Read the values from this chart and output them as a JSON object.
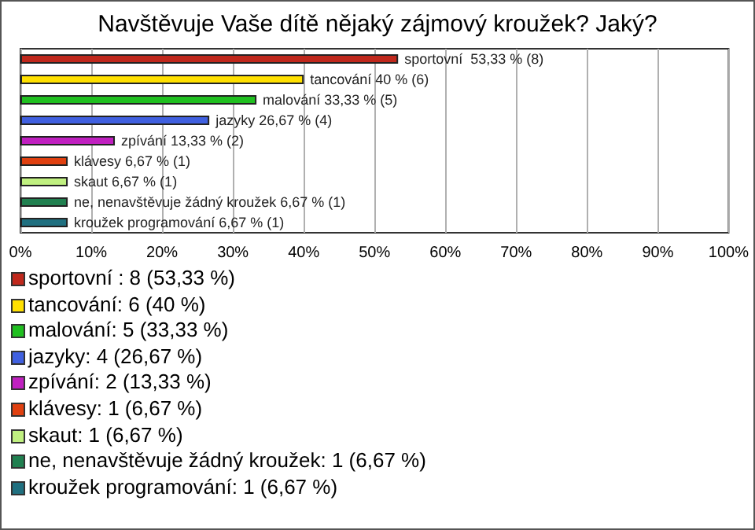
{
  "chart_data": {
    "type": "bar",
    "orientation": "horizontal",
    "title": "Navštěvuje Vaše dítě nějaký zájmový kroužek? Jaký?",
    "categories": [
      null,
      null,
      null,
      null,
      null,
      null,
      null,
      null,
      null
    ],
    "values": [
      53.33,
      40,
      33.33,
      26.67,
      13.33,
      6.67,
      6.67,
      6.67,
      6.67
    ],
    "colors": [
      "#c0281c",
      "#ffe000",
      "#20c020",
      "#4060e0",
      "#c020c0",
      "#e04010",
      "#c0f080",
      "#208050",
      "#207080"
    ],
    "value_labels": [
      "sportovní  53,33 % (8)",
      "tancování 40 % (6)",
      "malování 33,33 % (5)",
      "jazyky 26,67 % (4)",
      "zpívání 13,33 % (2)",
      "klávesy 6,67 % (1)",
      "skaut 6,67 % (1)",
      "ne, nenavštěvuje žádný kroužek 6,67 % (1)",
      "kroužek programování 6,67 % (1)"
    ],
    "xlim": [
      0,
      100
    ],
    "xticks": [
      {
        "value": 0,
        "label": "0%"
      },
      {
        "value": 10,
        "label": "10%"
      },
      {
        "value": 20,
        "label": "20%"
      },
      {
        "value": 30,
        "label": "30%"
      },
      {
        "value": 40,
        "label": "40%"
      },
      {
        "value": 50,
        "label": "50%"
      },
      {
        "value": 60,
        "label": "60%"
      },
      {
        "value": 70,
        "label": "70%"
      },
      {
        "value": 80,
        "label": "80%"
      },
      {
        "value": 90,
        "label": "90%"
      },
      {
        "value": 100,
        "label": "100%"
      }
    ],
    "grid": "x",
    "annotations": [
      "sportovní : 8 (53,33 %)",
      "tancování: 6 (40 %)",
      "malování: 5 (33,33 %)",
      "jazyky: 4 (26,67 %)",
      "zpívání: 2 (13,33 %)",
      "klávesy: 1 (6,67 %)",
      "skaut: 1 (6,67 %)",
      "ne, nenavštěvuje žádný kroužek: 1 (6,67 %)",
      "kroužek programování: 1 (6,67 %)"
    ]
  }
}
